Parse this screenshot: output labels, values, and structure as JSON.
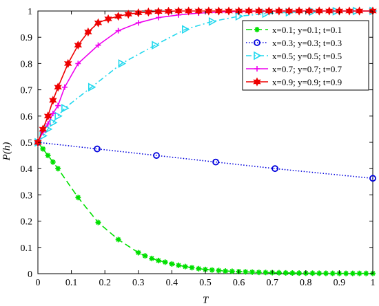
{
  "chart_data": {
    "type": "line",
    "title": "",
    "xlabel": "T",
    "ylabel": "P(h)",
    "xlim": [
      0,
      1
    ],
    "ylim": [
      0,
      1
    ],
    "x_ticks": [
      "0",
      "0.1",
      "0.2",
      "0.3",
      "0.4",
      "0.5",
      "0.6",
      "0.7",
      "0.8",
      "0.9",
      "1"
    ],
    "y_ticks": [
      "0",
      "0.1",
      "0.2",
      "0.3",
      "0.4",
      "0.5",
      "0.6",
      "0.7",
      "0.8",
      "0.9",
      "1"
    ],
    "grid": false,
    "legend_position": "top-right",
    "series": [
      {
        "name": "x=0.1; y=0.1; t=0.1",
        "color": "#00e000",
        "line_style": "dashed",
        "marker": "asterisk",
        "x": [
          0,
          0.015,
          0.03,
          0.045,
          0.06,
          0.12,
          0.18,
          0.24,
          0.3,
          0.32,
          0.34,
          0.36,
          0.38,
          0.4,
          0.42,
          0.44,
          0.46,
          0.48,
          0.5,
          0.52,
          0.54,
          0.56,
          0.58,
          0.6,
          0.62,
          0.64,
          0.66,
          0.68,
          0.7,
          0.72,
          0.74,
          0.76,
          0.78,
          0.8,
          0.82,
          0.84,
          0.86,
          0.88,
          0.9,
          0.92,
          0.94,
          0.96,
          0.98,
          1.0
        ],
        "y": [
          0.5,
          0.475,
          0.45,
          0.425,
          0.4,
          0.29,
          0.195,
          0.13,
          0.08,
          0.068,
          0.058,
          0.05,
          0.044,
          0.037,
          0.032,
          0.027,
          0.023,
          0.019,
          0.016,
          0.014,
          0.012,
          0.01,
          0.009,
          0.008,
          0.007,
          0.006,
          0.005,
          0.0045,
          0.004,
          0.0035,
          0.003,
          0.0025,
          0.0022,
          0.002,
          0.0018,
          0.0016,
          0.0014,
          0.0012,
          0.001,
          0.001,
          0.001,
          0.001,
          0.001,
          0.001
        ]
      },
      {
        "name": "x=0.3; y=0.3; t=0.3",
        "color": "#0000dd",
        "line_style": "dotted",
        "marker": "circle",
        "x": [
          0,
          0.177,
          0.354,
          0.531,
          0.708,
          1.0
        ],
        "y": [
          0.5,
          0.475,
          0.45,
          0.425,
          0.4,
          0.363
        ]
      },
      {
        "name": "x=0.5; y=0.5; t=0.5",
        "color": "#22d8ee",
        "line_style": "dashdot",
        "marker": "triangle-right",
        "x": [
          0,
          0.015,
          0.03,
          0.045,
          0.06,
          0.08,
          0.16,
          0.25,
          0.35,
          0.44,
          0.52,
          0.6,
          0.68,
          0.75,
          0.82,
          0.89,
          0.95,
          1.0
        ],
        "y": [
          0.5,
          0.525,
          0.55,
          0.575,
          0.6,
          0.63,
          0.71,
          0.8,
          0.87,
          0.93,
          0.96,
          0.98,
          0.99,
          0.995,
          0.998,
          0.999,
          1.0,
          1.0
        ]
      },
      {
        "name": "x=0.7; y=0.7; t=0.7",
        "color": "#ee00ee",
        "line_style": "solid",
        "marker": "plus",
        "x": [
          0,
          0.015,
          0.03,
          0.045,
          0.06,
          0.08,
          0.12,
          0.18,
          0.24,
          0.3,
          0.36,
          0.42,
          0.48,
          0.54,
          0.6,
          0.66,
          0.72,
          0.78,
          0.84,
          0.9,
          0.96,
          1.0
        ],
        "y": [
          0.5,
          0.54,
          0.57,
          0.61,
          0.64,
          0.71,
          0.8,
          0.87,
          0.925,
          0.955,
          0.975,
          0.985,
          0.992,
          0.996,
          0.998,
          0.999,
          1.0,
          1.0,
          1.0,
          1.0,
          1.0,
          1.0
        ]
      },
      {
        "name": "x=0.9; y=0.9; t=0.9",
        "color": "#ee0000",
        "line_style": "solid",
        "marker": "hexagram",
        "x": [
          0,
          0.015,
          0.03,
          0.045,
          0.06,
          0.09,
          0.12,
          0.15,
          0.18,
          0.21,
          0.24,
          0.27,
          0.3,
          0.33,
          0.36,
          0.39,
          0.42,
          0.45,
          0.48,
          0.51,
          0.54,
          0.57,
          0.6,
          0.63,
          0.66,
          0.69,
          0.72,
          0.75,
          0.78,
          0.81,
          0.84,
          0.87,
          0.9,
          0.93,
          0.96,
          1.0
        ],
        "y": [
          0.5,
          0.55,
          0.6,
          0.66,
          0.71,
          0.8,
          0.87,
          0.92,
          0.955,
          0.97,
          0.98,
          0.988,
          0.993,
          0.996,
          0.998,
          0.999,
          1.0,
          1.0,
          1.0,
          1.0,
          1.0,
          1.0,
          1.0,
          1.0,
          1.0,
          1.0,
          1.0,
          1.0,
          1.0,
          1.0,
          1.0,
          1.0,
          1.0,
          1.0,
          1.0,
          1.0
        ]
      }
    ]
  }
}
